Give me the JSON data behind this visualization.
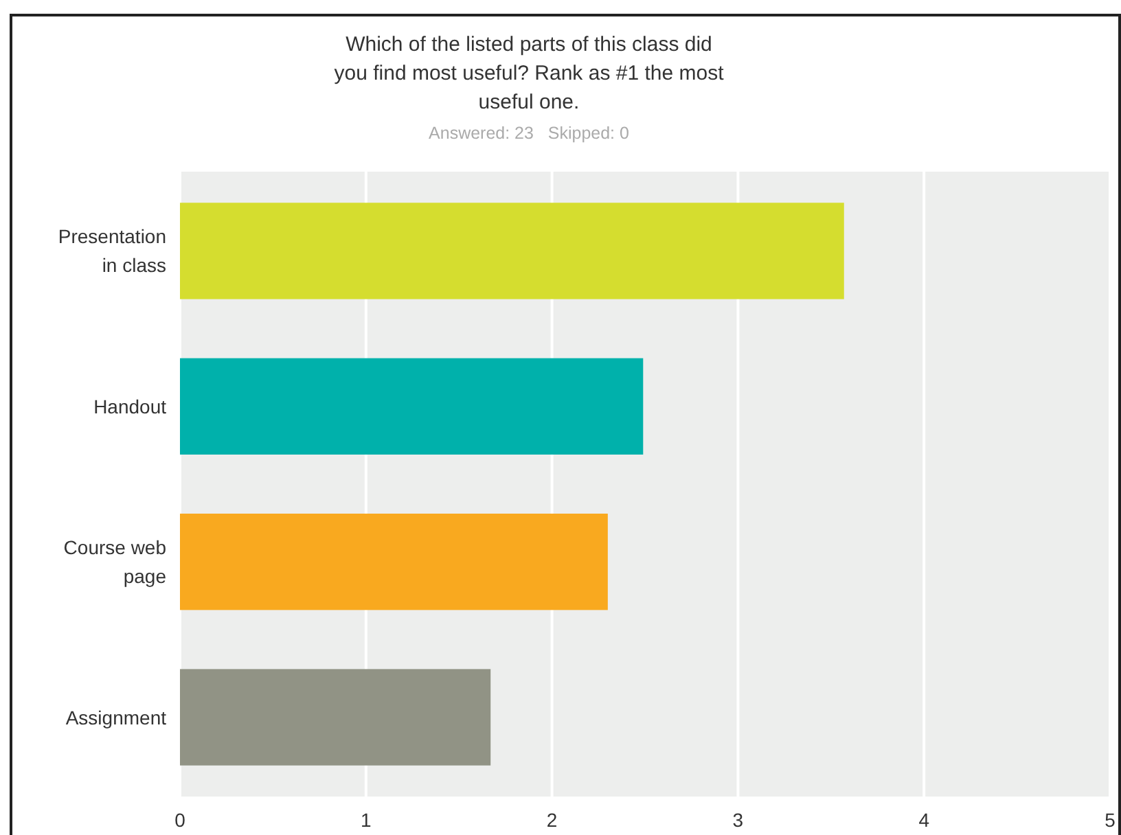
{
  "chart_data": {
    "type": "bar",
    "orientation": "horizontal",
    "title": "Which of the listed parts of this class did you find most useful? Rank as #1 the most useful one.",
    "subtitle": "Answered: 23   Skipped: 0",
    "categories": [
      "Presentation in class",
      "Handout",
      "Course web page",
      "Assignment"
    ],
    "values": [
      3.57,
      2.49,
      2.3,
      1.67
    ],
    "colors": [
      "#d5dd2f",
      "#00b1ab",
      "#f9a91f",
      "#919385"
    ],
    "xlim": [
      0,
      5
    ],
    "xticks": [
      0,
      1,
      2,
      3,
      4,
      5
    ],
    "grid": "x"
  }
}
